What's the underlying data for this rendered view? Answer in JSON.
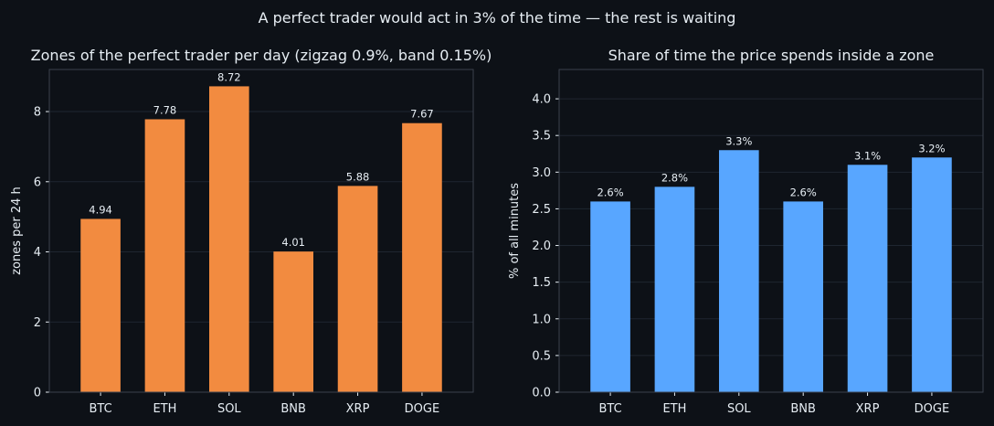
{
  "suptitle": "A perfect trader would act in 3% of the time — the rest is waiting",
  "chart_data": [
    {
      "type": "bar",
      "title": "Zones of the perfect trader per day (zigzag 0.9%, band 0.15%)",
      "xlabel": "",
      "ylabel": "zones per 24 h",
      "categories": [
        "BTC",
        "ETH",
        "SOL",
        "BNB",
        "XRP",
        "DOGE"
      ],
      "values": [
        4.94,
        7.78,
        8.72,
        4.01,
        5.88,
        7.67
      ],
      "value_labels": [
        "4.94",
        "7.78",
        "8.72",
        "4.01",
        "5.88",
        "7.67"
      ],
      "ylim": [
        0,
        9.2
      ],
      "yticks": [
        0,
        2,
        4,
        6,
        8
      ],
      "ytick_labels": [
        "0",
        "2",
        "4",
        "6",
        "8"
      ],
      "color": "#f28b40",
      "grid": true
    },
    {
      "type": "bar",
      "title": "Share of time the price spends inside a zone",
      "xlabel": "",
      "ylabel": "% of all minutes",
      "categories": [
        "BTC",
        "ETH",
        "SOL",
        "BNB",
        "XRP",
        "DOGE"
      ],
      "values": [
        2.6,
        2.8,
        3.3,
        2.6,
        3.1,
        3.2
      ],
      "value_labels": [
        "2.6%",
        "2.8%",
        "3.3%",
        "2.6%",
        "3.1%",
        "3.2%"
      ],
      "ylim": [
        0,
        4.4
      ],
      "yticks": [
        0,
        0.5,
        1.0,
        1.5,
        2.0,
        2.5,
        3.0,
        3.5,
        4.0
      ],
      "ytick_labels": [
        "0.0",
        "0.5",
        "1.0",
        "1.5",
        "2.0",
        "2.5",
        "3.0",
        "3.5",
        "4.0"
      ],
      "color": "#58a6ff",
      "grid": true
    }
  ],
  "colors": {
    "background": "#0d1117",
    "text": "#e6edf3",
    "grid": "#1f2630",
    "spine": "#3a414c"
  }
}
